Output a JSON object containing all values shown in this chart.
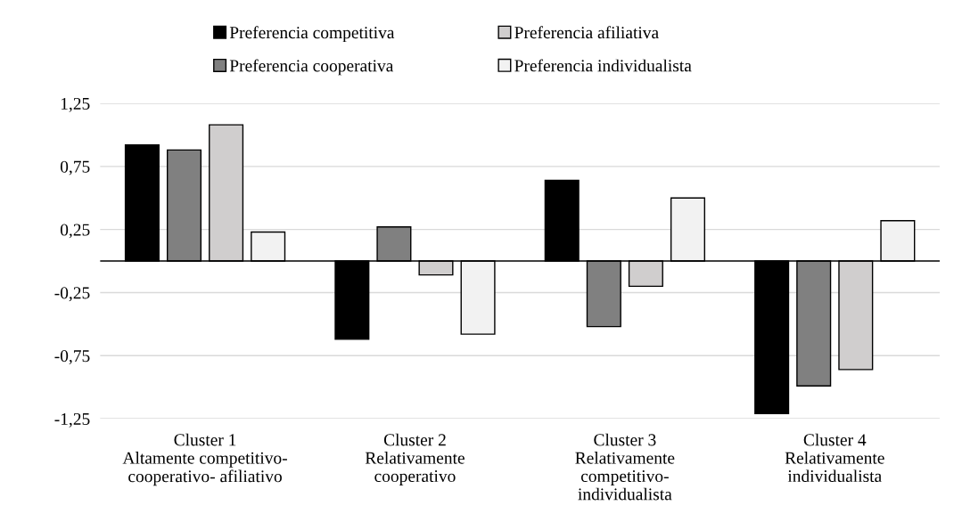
{
  "chart_data": {
    "type": "bar",
    "categories": [
      "Cluster 1\nAltamente competitivo-\ncooperativo- afiliativo",
      "Cluster 2\nRelativamente\ncooperativo",
      "Cluster 3\nRelativamente\ncompetitivo-\nindividualista",
      "Cluster 4\nRelativamente\nindividualista"
    ],
    "series": [
      {
        "name": "Preferencia competitiva",
        "color": "#000000",
        "values": [
          0.92,
          -0.62,
          0.64,
          -1.21
        ]
      },
      {
        "name": "Preferencia cooperativa",
        "color": "#808080",
        "values": [
          0.88,
          0.27,
          -0.52,
          -0.99
        ]
      },
      {
        "name": "Preferencia afiliativa",
        "color": "#d0cece",
        "values": [
          1.08,
          -0.11,
          -0.2,
          -0.86
        ]
      },
      {
        "name": "Preferencia individualista",
        "color": "#f2f2f2",
        "values": [
          0.23,
          -0.58,
          0.5,
          0.32
        ]
      }
    ],
    "ylim": [
      -1.25,
      1.25
    ],
    "yticks": [
      {
        "value": -1.25,
        "label": "-1,25"
      },
      {
        "value": -0.75,
        "label": "-0,75"
      },
      {
        "value": -0.25,
        "label": "-0,25"
      },
      {
        "value": 0.25,
        "label": "0,25"
      },
      {
        "value": 0.75,
        "label": "0,75"
      },
      {
        "value": 1.25,
        "label": "1,25"
      }
    ],
    "ref_lines": [
      {
        "axis": "y",
        "value": 0,
        "color": "#000000"
      }
    ],
    "grid": "y",
    "legend": "top"
  }
}
